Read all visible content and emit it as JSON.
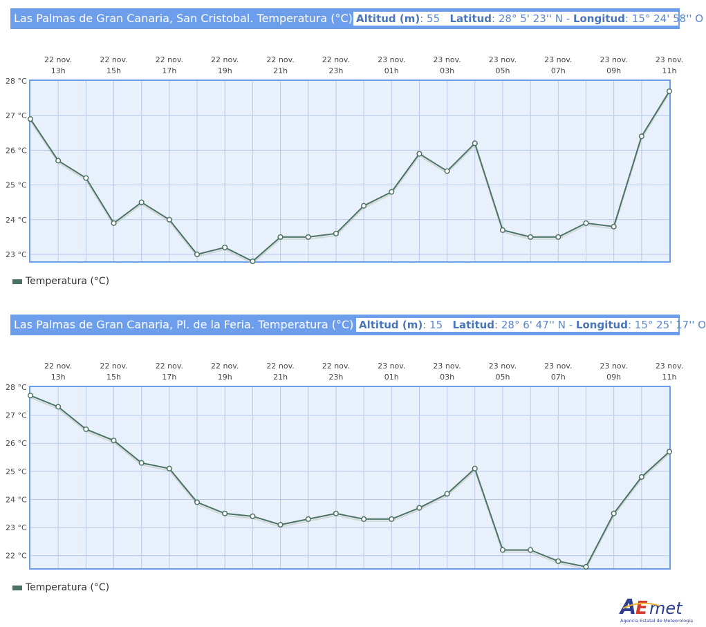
{
  "charts": [
    {
      "title": "Las Palmas de Gran Canaria, San Cristobal. Temperatura (°C)",
      "altitud_label": "Altitud (m)",
      "altitud_value": ": 55",
      "latitud_label": "Latitud",
      "latitud_value": ": 28° 5' 23'' N",
      "longitud_label": "Longitud",
      "longitud_value": ": 15° 24' 58'' O",
      "legend": "Temperatura (°C)"
    },
    {
      "title": "Las Palmas de Gran Canaria, Pl. de la Feria. Temperatura (°C)",
      "altitud_label": "Altitud (m)",
      "altitud_value": ": 15",
      "latitud_label": "Latitud",
      "latitud_value": ": 28° 6' 47'' N",
      "longitud_label": "Longitud",
      "longitud_value": ": 15° 25' 17'' O",
      "legend": "Temperatura (°C)"
    }
  ],
  "chart_data": [
    {
      "type": "line",
      "title": "Las Palmas de Gran Canaria, San Cristobal. Temperatura (°C)",
      "x": [
        "22 nov. 12h",
        "22 nov. 13h",
        "22 nov. 14h",
        "22 nov. 15h",
        "22 nov. 16h",
        "22 nov. 17h",
        "22 nov. 18h",
        "22 nov. 19h",
        "22 nov. 20h",
        "22 nov. 21h",
        "22 nov. 22h",
        "22 nov. 23h",
        "23 nov. 00h",
        "23 nov. 01h",
        "23 nov. 02h",
        "23 nov. 03h",
        "23 nov. 04h",
        "23 nov. 05h",
        "23 nov. 06h",
        "23 nov. 07h",
        "23 nov. 08h",
        "23 nov. 09h",
        "23 nov. 10h",
        "23 nov. 11h"
      ],
      "tick_labels": [
        [
          "22 nov.",
          "13h"
        ],
        [
          "22 nov.",
          "15h"
        ],
        [
          "22 nov.",
          "17h"
        ],
        [
          "22 nov.",
          "19h"
        ],
        [
          "22 nov.",
          "21h"
        ],
        [
          "22 nov.",
          "23h"
        ],
        [
          "23 nov.",
          "01h"
        ],
        [
          "23 nov.",
          "03h"
        ],
        [
          "23 nov.",
          "05h"
        ],
        [
          "23 nov.",
          "07h"
        ],
        [
          "23 nov.",
          "09h"
        ],
        [
          "23 nov.",
          "11h"
        ]
      ],
      "y_ticks": [
        "28 °C",
        "27 °C",
        "26 °C",
        "25 °C",
        "24 °C",
        "23 °C"
      ],
      "series": [
        {
          "name": "Temperatura (°C)",
          "values": [
            26.9,
            25.7,
            25.2,
            23.9,
            24.5,
            24.0,
            23.0,
            23.2,
            22.8,
            23.5,
            23.5,
            23.6,
            24.4,
            24.8,
            25.9,
            25.4,
            26.2,
            23.7,
            23.5,
            23.5,
            23.9,
            23.8,
            26.4,
            27.7
          ]
        }
      ],
      "ylim": [
        22.8,
        28
      ],
      "grid": true,
      "legend_position": "bottom-left",
      "colors": {
        "line": "#4b7263",
        "plot_bg": "#e8f0fb",
        "grid": "#b8c9e8",
        "border": "#6d9eeb"
      }
    },
    {
      "type": "line",
      "title": "Las Palmas de Gran Canaria, Pl. de la Feria. Temperatura (°C)",
      "x": [
        "22 nov. 12h",
        "22 nov. 13h",
        "22 nov. 14h",
        "22 nov. 15h",
        "22 nov. 16h",
        "22 nov. 17h",
        "22 nov. 18h",
        "22 nov. 19h",
        "22 nov. 20h",
        "22 nov. 21h",
        "22 nov. 22h",
        "22 nov. 23h",
        "23 nov. 00h",
        "23 nov. 01h",
        "23 nov. 02h",
        "23 nov. 03h",
        "23 nov. 04h",
        "23 nov. 05h",
        "23 nov. 06h",
        "23 nov. 07h",
        "23 nov. 08h",
        "23 nov. 09h",
        "23 nov. 10h",
        "23 nov. 11h"
      ],
      "tick_labels": [
        [
          "22 nov.",
          "13h"
        ],
        [
          "22 nov.",
          "15h"
        ],
        [
          "22 nov.",
          "17h"
        ],
        [
          "22 nov.",
          "19h"
        ],
        [
          "22 nov.",
          "21h"
        ],
        [
          "22 nov.",
          "23h"
        ],
        [
          "23 nov.",
          "01h"
        ],
        [
          "23 nov.",
          "03h"
        ],
        [
          "23 nov.",
          "05h"
        ],
        [
          "23 nov.",
          "07h"
        ],
        [
          "23 nov.",
          "09h"
        ],
        [
          "23 nov.",
          "11h"
        ]
      ],
      "y_ticks": [
        "28 °C",
        "27 °C",
        "26 °C",
        "25 °C",
        "24 °C",
        "23 °C",
        "22 °C"
      ],
      "series": [
        {
          "name": "Temperatura (°C)",
          "values": [
            27.7,
            27.3,
            26.5,
            26.1,
            25.3,
            25.1,
            23.9,
            23.5,
            23.4,
            23.1,
            23.3,
            23.5,
            23.3,
            23.3,
            23.7,
            24.2,
            25.1,
            22.2,
            22.2,
            21.8,
            21.6,
            23.5,
            24.8,
            25.7
          ]
        }
      ],
      "ylim": [
        21.55,
        28
      ],
      "grid": true,
      "legend_position": "bottom-left",
      "colors": {
        "line": "#4b7263",
        "plot_bg": "#e8f0fb",
        "grid": "#b8c9e8",
        "border": "#6d9eeb"
      }
    }
  ],
  "logo": {
    "text": "AEmet",
    "subtitle": "Agencia Estatal de Meteorología"
  }
}
